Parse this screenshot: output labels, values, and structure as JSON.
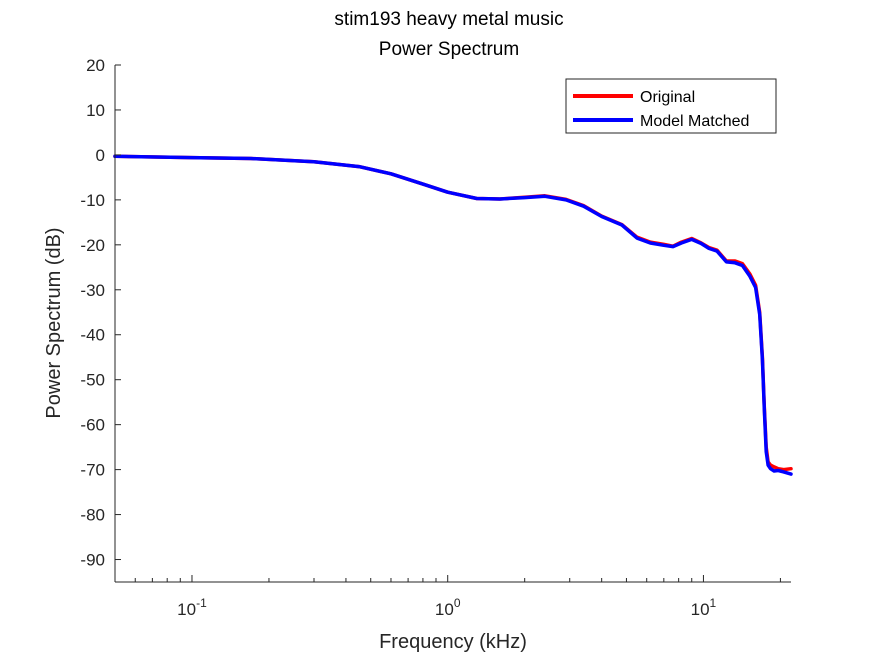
{
  "chart_data": {
    "type": "line",
    "title": "stim193 heavy metal music",
    "subtitle": "Power Spectrum",
    "xlabel": "Frequency (kHz)",
    "ylabel": "Power Spectrum (dB)",
    "xscale": "log",
    "xlim": [
      0.05,
      22
    ],
    "ylim": [
      -95,
      20
    ],
    "yticks": [
      20,
      10,
      0,
      -10,
      -20,
      -30,
      -40,
      -50,
      -60,
      -70,
      -80,
      -90
    ],
    "xticks": [
      {
        "value": 0.1,
        "base": "10",
        "exp": "-1"
      },
      {
        "value": 1,
        "base": "10",
        "exp": "0"
      },
      {
        "value": 10,
        "base": "10",
        "exp": "1"
      }
    ],
    "grid": false,
    "legend_position": "top-right",
    "series": [
      {
        "name": "Original",
        "color": "#ff0000",
        "x": [
          0.05,
          0.1,
          0.17,
          0.3,
          0.45,
          0.6,
          0.8,
          1.0,
          1.3,
          1.6,
          2.0,
          2.4,
          2.9,
          3.4,
          4.0,
          4.8,
          5.5,
          6.2,
          7.0,
          7.6,
          8.2,
          9.0,
          9.8,
          10.5,
          11.3,
          12.3,
          13.3,
          14.2,
          15.2,
          16.0,
          16.6,
          17.0,
          17.3,
          17.6,
          17.9,
          18.3,
          18.9,
          19.6,
          20.6,
          22.0
        ],
        "y": [
          -0.3,
          -0.6,
          -0.8,
          -1.5,
          -2.6,
          -4.2,
          -6.5,
          -8.3,
          -9.7,
          -9.8,
          -9.4,
          -9.1,
          -9.9,
          -11.3,
          -13.6,
          -15.5,
          -18.3,
          -19.4,
          -19.9,
          -20.3,
          -19.4,
          -18.6,
          -19.6,
          -20.6,
          -21.2,
          -23.6,
          -23.6,
          -24.2,
          -26.5,
          -29.0,
          -35.0,
          -45.0,
          -56.0,
          -65.0,
          -68.3,
          -69.0,
          -69.4,
          -69.8,
          -70.0,
          -69.8
        ]
      },
      {
        "name": "Model Matched",
        "color": "#0000ff",
        "x": [
          0.05,
          0.1,
          0.17,
          0.3,
          0.45,
          0.6,
          0.8,
          1.0,
          1.3,
          1.6,
          2.0,
          2.4,
          2.9,
          3.4,
          4.0,
          4.8,
          5.5,
          6.2,
          7.0,
          7.6,
          8.2,
          9.0,
          9.8,
          10.5,
          11.3,
          12.3,
          13.3,
          14.2,
          15.2,
          16.0,
          16.6,
          17.0,
          17.3,
          17.6,
          17.9,
          18.3,
          18.9,
          19.6,
          20.6,
          22.0
        ],
        "y": [
          -0.3,
          -0.6,
          -0.8,
          -1.5,
          -2.6,
          -4.2,
          -6.5,
          -8.3,
          -9.7,
          -9.8,
          -9.5,
          -9.2,
          -10.0,
          -11.4,
          -13.7,
          -15.6,
          -18.5,
          -19.6,
          -20.1,
          -20.4,
          -19.6,
          -18.8,
          -19.7,
          -20.8,
          -21.4,
          -23.8,
          -24.0,
          -24.6,
          -27.0,
          -29.5,
          -35.5,
          -45.5,
          -56.5,
          -66.0,
          -69.0,
          -69.8,
          -70.3,
          -70.2,
          -70.5,
          -71.0
        ]
      }
    ]
  }
}
